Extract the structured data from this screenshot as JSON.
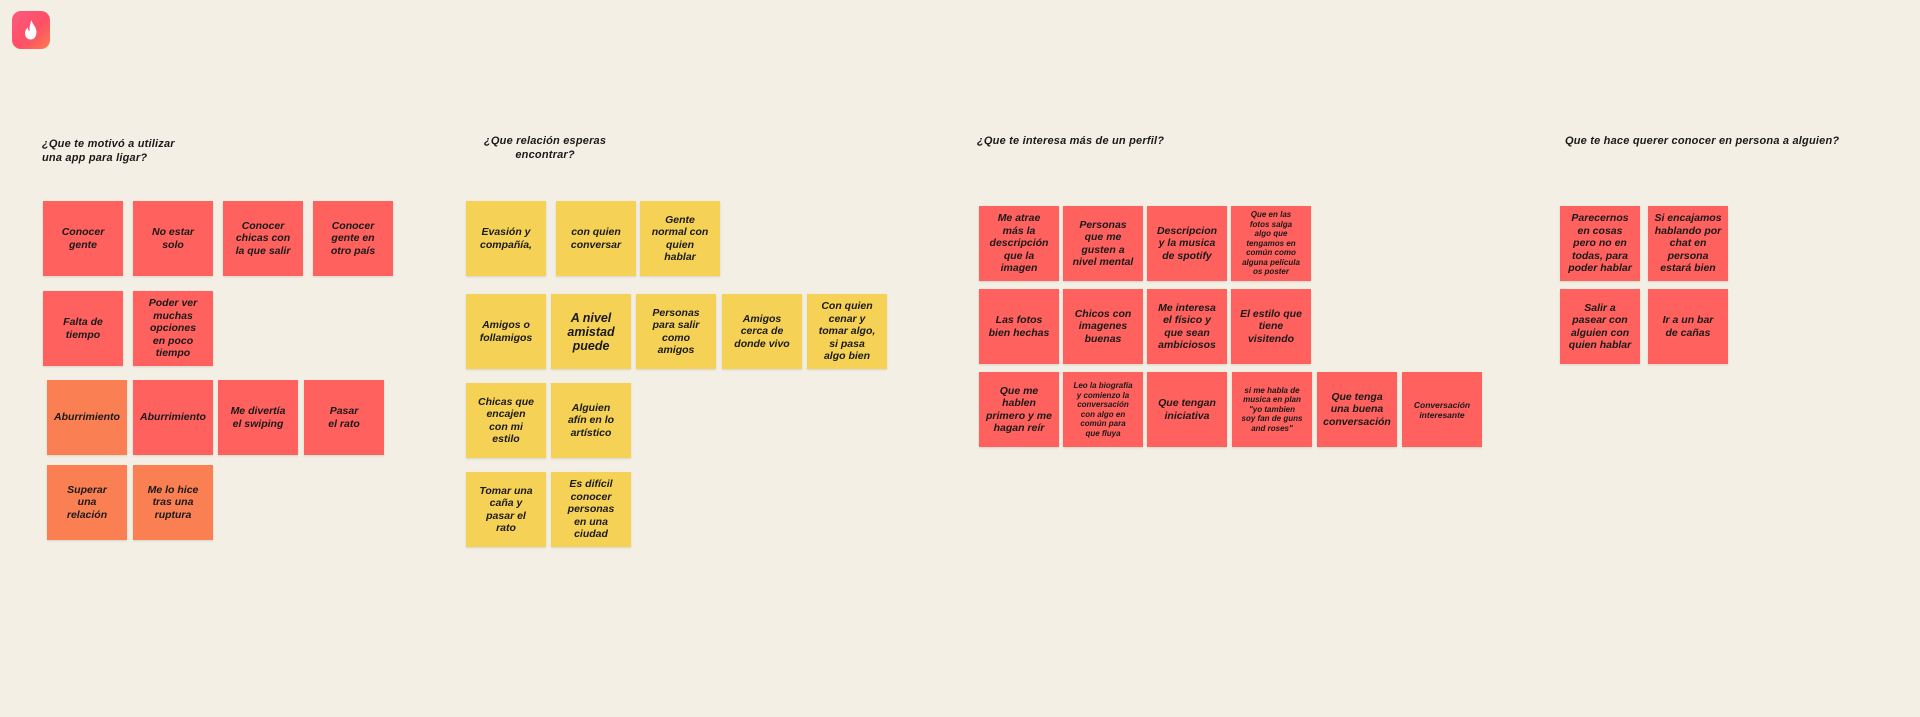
{
  "app": {
    "logo_icon": "flame-icon",
    "brand_color": "#fe4f66",
    "background": "#f4efe5"
  },
  "colors": {
    "red": "#fe615e",
    "orange": "#fa7f52",
    "yellow": "#f5d155"
  },
  "columns": [
    {
      "heading": "¿Que te motivó a utilizar\nuna app para ligar?",
      "notes": [
        "Conocer\ngente",
        "No estar\nsolo",
        "Conocer\nchicas con\nla que salir",
        "Conocer\ngente en\notro país",
        "Falta de\ntiempo",
        "Poder ver\nmuchas\nopciones\nen poco\ntiempo",
        "Aburrimiento",
        "Aburrimiento",
        "Me divertía\nel swiping",
        "Pasar\nel rato",
        "Superar\nuna\nrelación",
        "Me lo hice\ntras una\nruptura"
      ]
    },
    {
      "heading": "¿Que relación esperas\nencontrar?",
      "notes": [
        "Evasión y\ncompañía,",
        "con quien\nconversar",
        "Gente\nnormal con\nquien\nhablar",
        "Amigos o\nfollamigos",
        "A nivel\namistad\npuede",
        "Personas\npara salir\ncomo\namigos",
        "Amigos\ncerca de\ndonde vivo",
        "Con quien\ncenar y\ntomar algo,\nsi pasa\nalgo bien",
        "Chicas que\nencajen\ncon mi\nestilo",
        "Alguien\nafín en lo\nartístico",
        "Tomar una\ncaña y\npasar el\nrato",
        "Es difícil\nconocer\npersonas\nen una\nciudad"
      ]
    },
    {
      "heading": "¿Que te interesa más de un perfil?",
      "notes": [
        "Me atrae\nmás la\ndescripción\nque la\nimagen",
        "Personas\nque me\ngusten a\nnivel mental",
        "Descripcion\ny la musica\nde spotify",
        "Que en las\nfotos salga\nalgo que\ntengamos en\ncomún como\nalguna película\nos poster",
        "Las fotos\nbien hechas",
        "Chicos con\nimagenes\nbuenas",
        "Me interesa\nel físico y\nque sean\nambiciosos",
        "El estilo que\ntiene\nvisitendo",
        "Que me\nhablen\nprimero y me\nhagan reír",
        "Leo la biografía\ny comienzo la\nconversación\ncon algo en\ncomún para\nque fluya",
        "Que tengan\niniciativa",
        "si me habla de\nmusica en plan\n\"yo tambien\nsoy fan de guns\nand roses\"",
        "Que tenga\nuna buena\nconversación",
        "Conversación\ninteresante"
      ]
    },
    {
      "heading": "Que te hace querer conocer en persona a alguien?",
      "notes": [
        "Parecernos\nen cosas\npero no en\ntodas, para\npoder hablar",
        "Si encajamos\nhablando por\nchat en\npersona\nestará bien",
        "Salir a\npasear con\nalguien con\nquien hablar",
        "Ir a un bar\nde cañas"
      ]
    }
  ]
}
